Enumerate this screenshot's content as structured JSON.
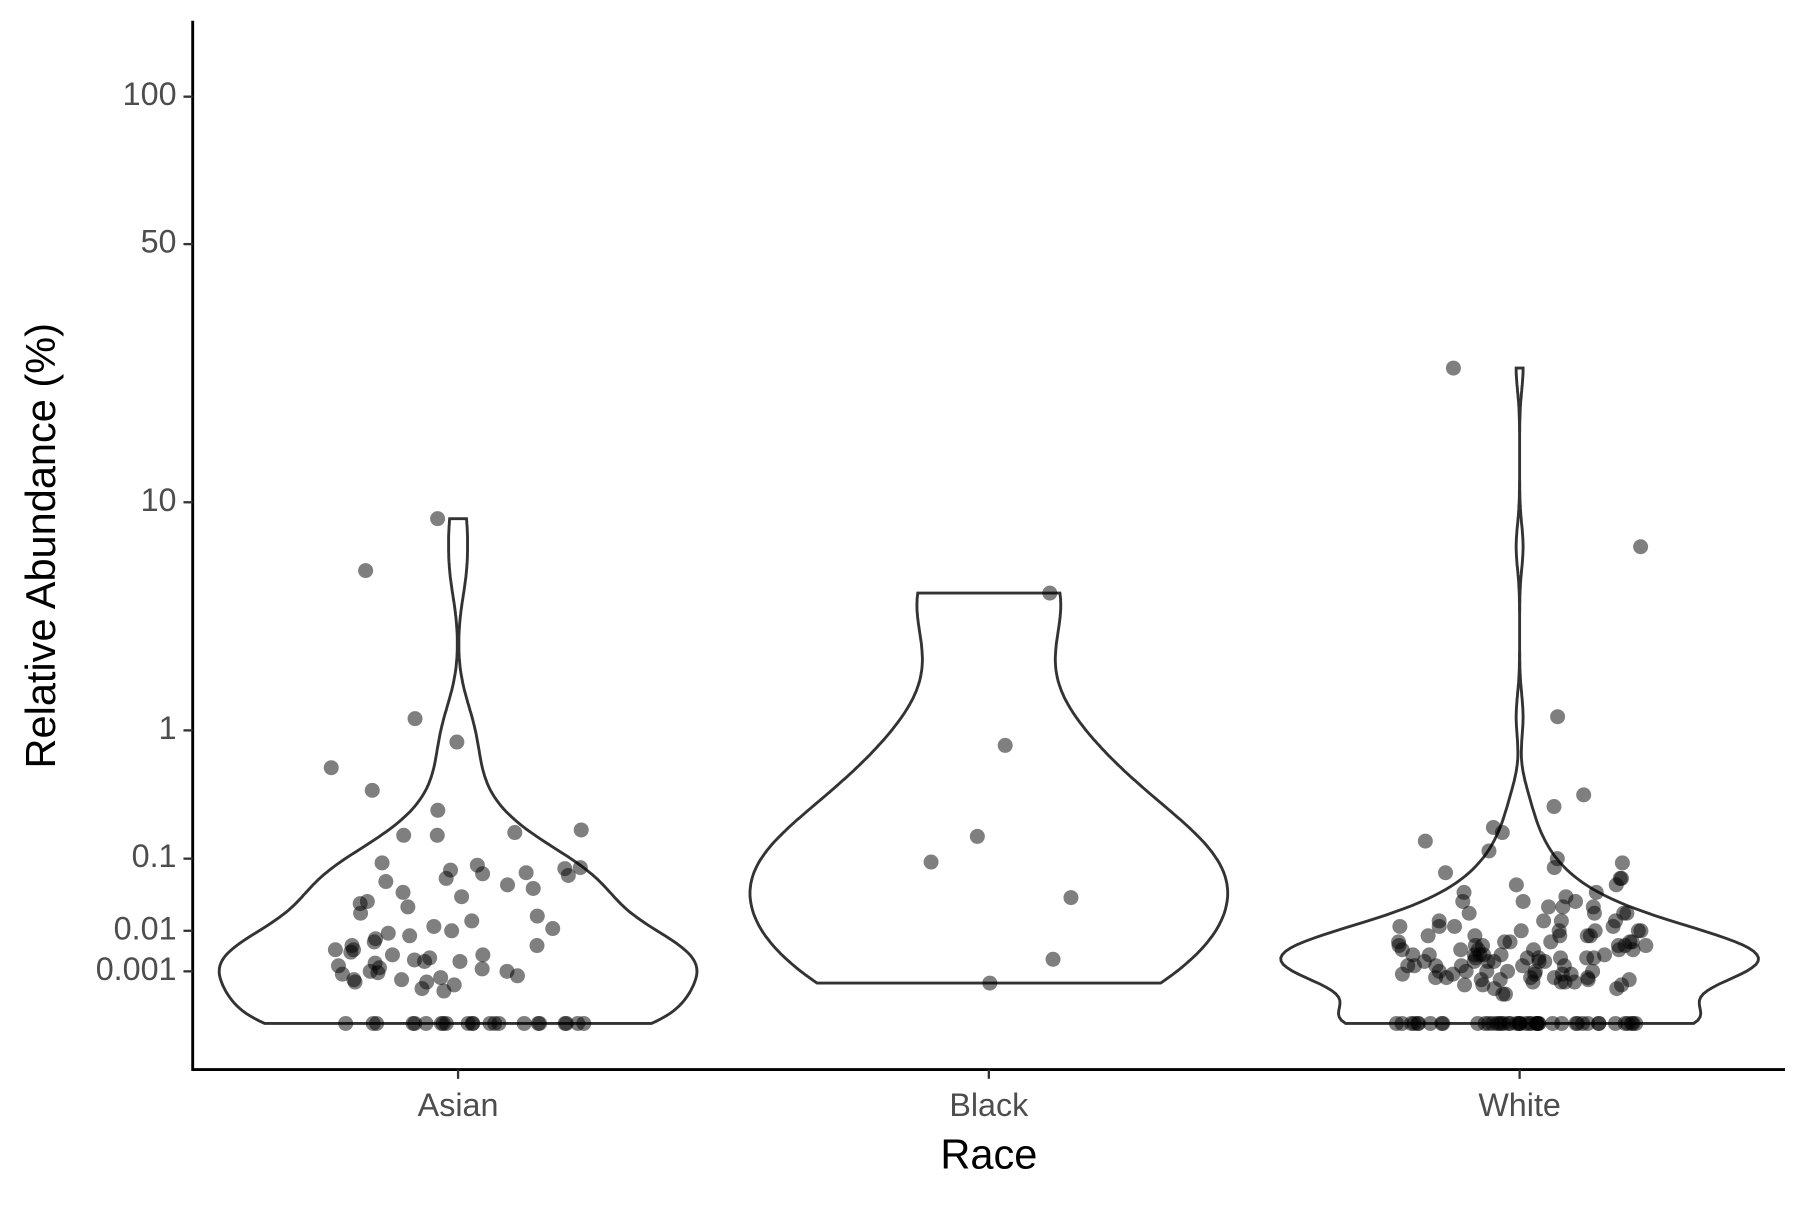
{
  "chart_data": {
    "type": "violin",
    "xlabel": "Race",
    "ylabel": "Relative Abundance (%)",
    "yscale": "fourth-root",
    "ylim": [
      0,
      137
    ],
    "yticks": [
      0.001,
      0.01,
      0.1,
      1,
      10,
      50,
      100
    ],
    "point_color": "#000000",
    "point_opacity": 0.5,
    "violin_color": "#333333",
    "series": [
      {
        "name": "Asian",
        "values": [
          0,
          0,
          0,
          0,
          0,
          0,
          0,
          0,
          0,
          0,
          0,
          0,
          0,
          0,
          0,
          0,
          0,
          0,
          0,
          0,
          0,
          0,
          8.8,
          5.7,
          1.17,
          0.85,
          0.58,
          0.4,
          0.28,
          0.19,
          0.18,
          0.17,
          0.17,
          0.09,
          0.085,
          0.08,
          0.078,
          0.075,
          0.07,
          0.068,
          0.065,
          0.06,
          0.055,
          0.05,
          0.045,
          0.04,
          0.035,
          0.03,
          0.028,
          0.025,
          0.02,
          0.018,
          0.015,
          0.012,
          0.011,
          0.01,
          0.009,
          0.008,
          0.007,
          0.006,
          0.005,
          0.005,
          0.004,
          0.004,
          0.0035,
          0.003,
          0.003,
          0.0025,
          0.0022,
          0.002,
          0.002,
          0.0018,
          0.0015,
          0.0013,
          0.0012,
          0.001,
          0.001,
          0.0009,
          0.0008,
          0.0007,
          0.0006,
          0.0005,
          0.0005,
          0.0004,
          0.0004,
          0.0003,
          0.0002,
          0.00015
        ]
      },
      {
        "name": "Black",
        "values": [
          4.65,
          0.81,
          0.166,
          0.092,
          0.034,
          0.0023,
          0.00036
        ]
      },
      {
        "name": "White",
        "values": [
          0,
          0,
          0,
          0,
          0,
          0,
          0,
          0,
          0,
          0,
          0,
          0,
          0,
          0,
          0,
          0,
          0,
          0,
          0,
          0,
          0,
          0,
          0,
          0,
          0,
          0,
          0,
          0,
          0,
          0,
          0,
          0,
          0,
          0,
          0,
          0,
          0,
          0,
          0,
          0,
          0,
          0,
          0,
          0,
          0,
          25,
          7,
          1.2,
          0.37,
          0.3,
          0.2,
          0.18,
          0.15,
          0.12,
          0.1,
          0.09,
          0.08,
          0.07,
          0.06,
          0.06,
          0.05,
          0.05,
          0.04,
          0.04,
          0.035,
          0.03,
          0.03,
          0.03,
          0.025,
          0.025,
          0.025,
          0.02,
          0.02,
          0.02,
          0.02,
          0.015,
          0.015,
          0.015,
          0.015,
          0.012,
          0.012,
          0.012,
          0.012,
          0.01,
          0.01,
          0.01,
          0.01,
          0.01,
          0.008,
          0.008,
          0.008,
          0.008,
          0.008,
          0.006,
          0.006,
          0.006,
          0.006,
          0.006,
          0.006,
          0.005,
          0.005,
          0.005,
          0.005,
          0.005,
          0.005,
          0.004,
          0.004,
          0.004,
          0.004,
          0.004,
          0.004,
          0.003,
          0.003,
          0.003,
          0.003,
          0.003,
          0.003,
          0.003,
          0.0025,
          0.0025,
          0.0025,
          0.0025,
          0.0025,
          0.0025,
          0.002,
          0.002,
          0.002,
          0.002,
          0.002,
          0.002,
          0.0015,
          0.0015,
          0.0015,
          0.0015,
          0.0015,
          0.0015,
          0.001,
          0.001,
          0.001,
          0.001,
          0.001,
          0.001,
          0.0008,
          0.0008,
          0.0008,
          0.0008,
          0.0008,
          0.0006,
          0.0006,
          0.0006,
          0.0006,
          0.0006,
          0.0005,
          0.0005,
          0.0005,
          0.0005,
          0.0004,
          0.0004,
          0.0004,
          0.0004,
          0.0003,
          0.0003,
          0.0003,
          0.0002,
          0.0002,
          0.0001,
          0.0001
        ]
      }
    ]
  }
}
